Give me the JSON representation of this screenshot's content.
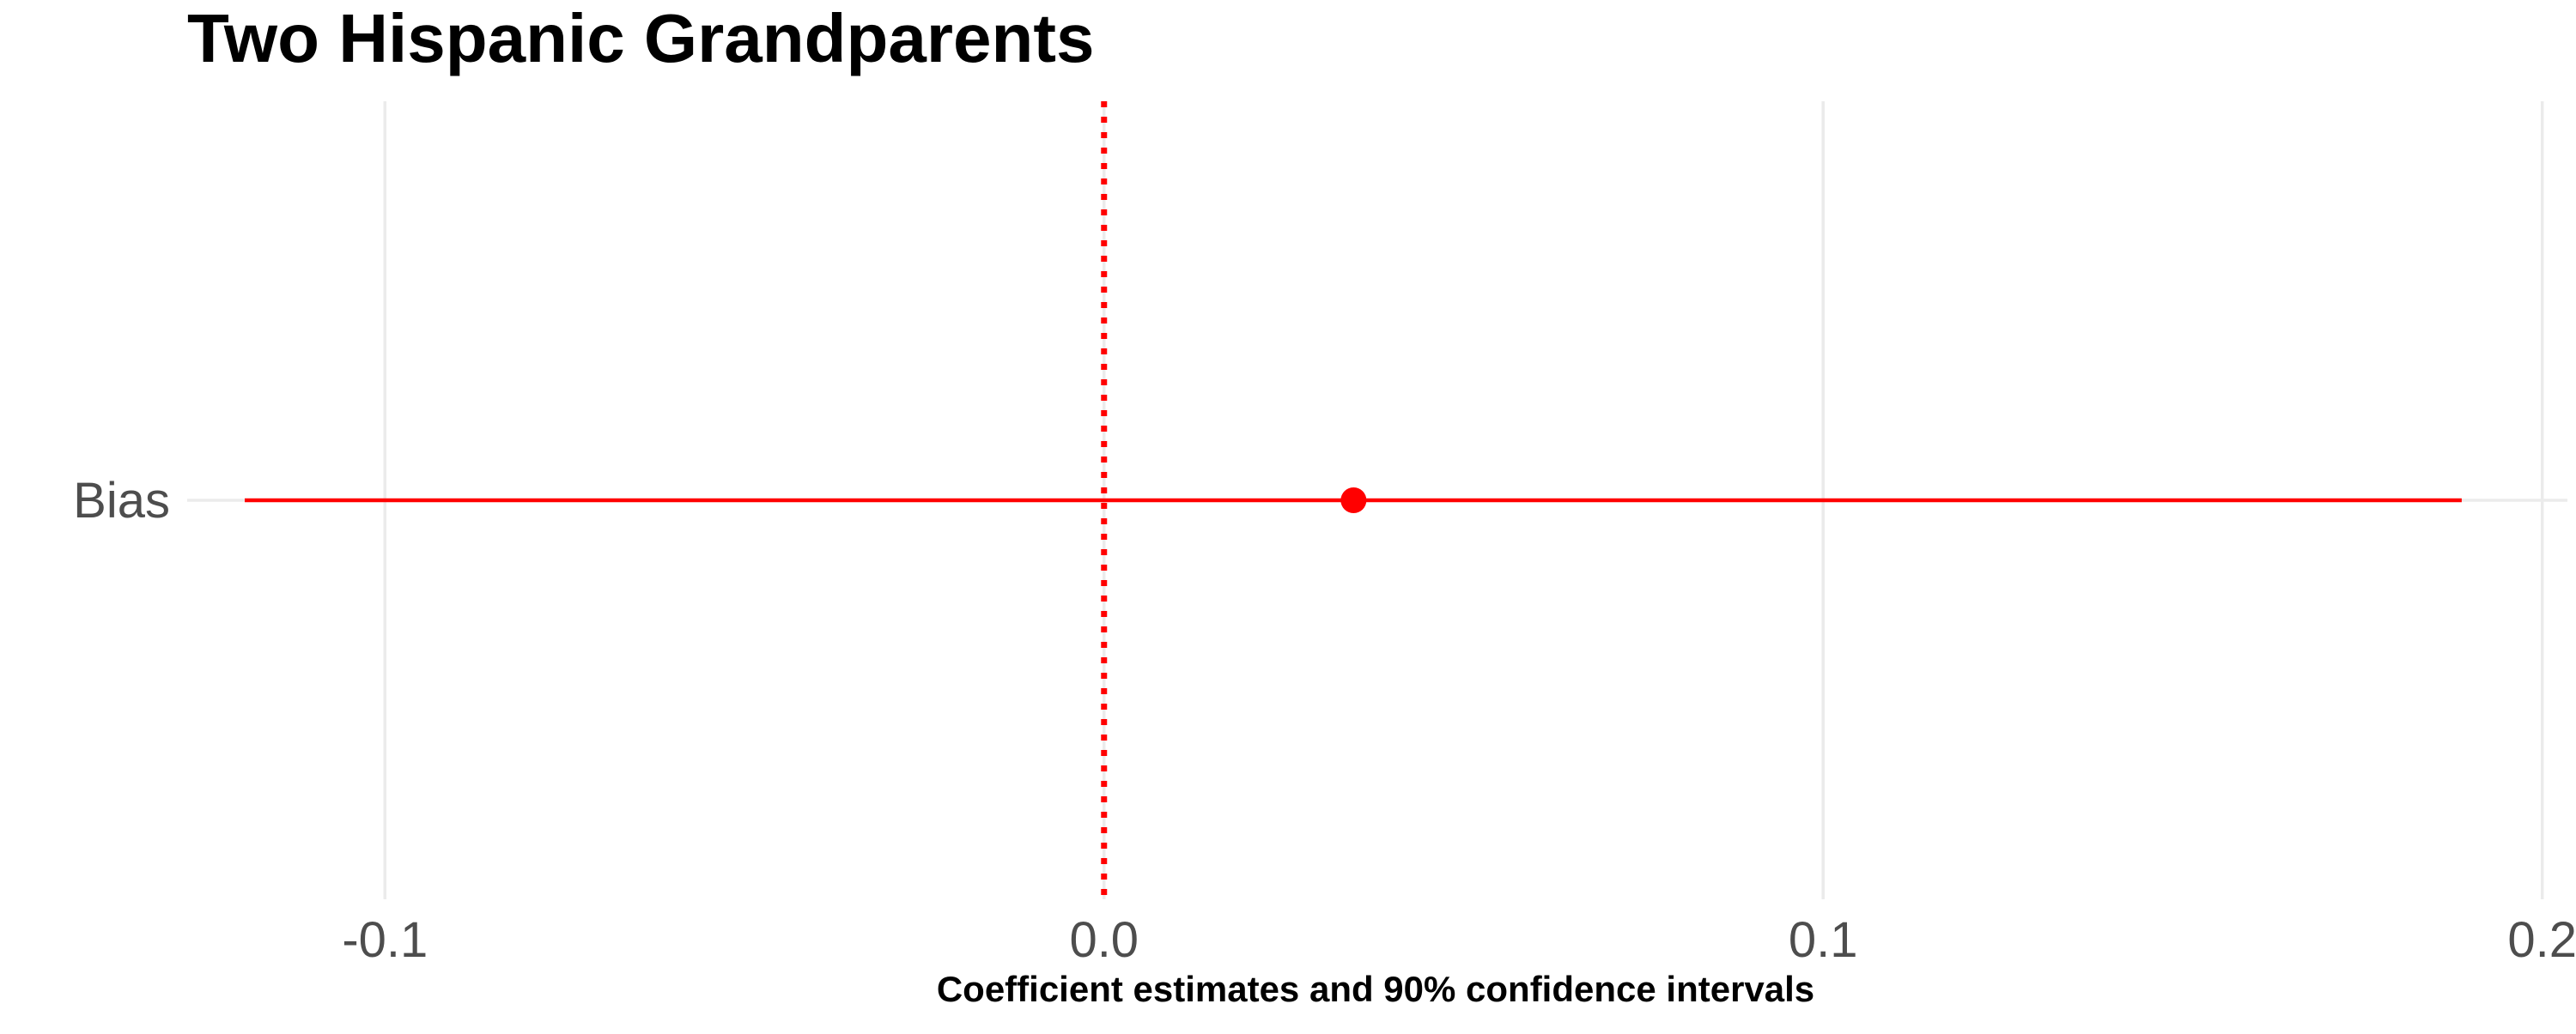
{
  "chart_data": {
    "type": "coefficient-plot",
    "title": "Two Hispanic Grandparents",
    "xlabel": "Coefficient estimates and 90% confidence intervals",
    "ylabel": "",
    "xlim": [
      -0.1275,
      0.2035
    ],
    "x_ticks": [
      -0.1,
      0.0,
      0.1,
      0.2
    ],
    "x_tick_labels": [
      "-0.1",
      "0.0",
      "0.1",
      "0.2"
    ],
    "categories": [
      "Bias"
    ],
    "series": [
      {
        "values": [
          0.0347
        ],
        "ci_low": [
          -0.1195
        ],
        "ci_high": [
          0.1888
        ],
        "color": "#ff0000"
      }
    ],
    "reference_line": {
      "x": 0,
      "style": "dotted",
      "color": "#ff0000"
    },
    "grid": true,
    "legend": "none"
  }
}
